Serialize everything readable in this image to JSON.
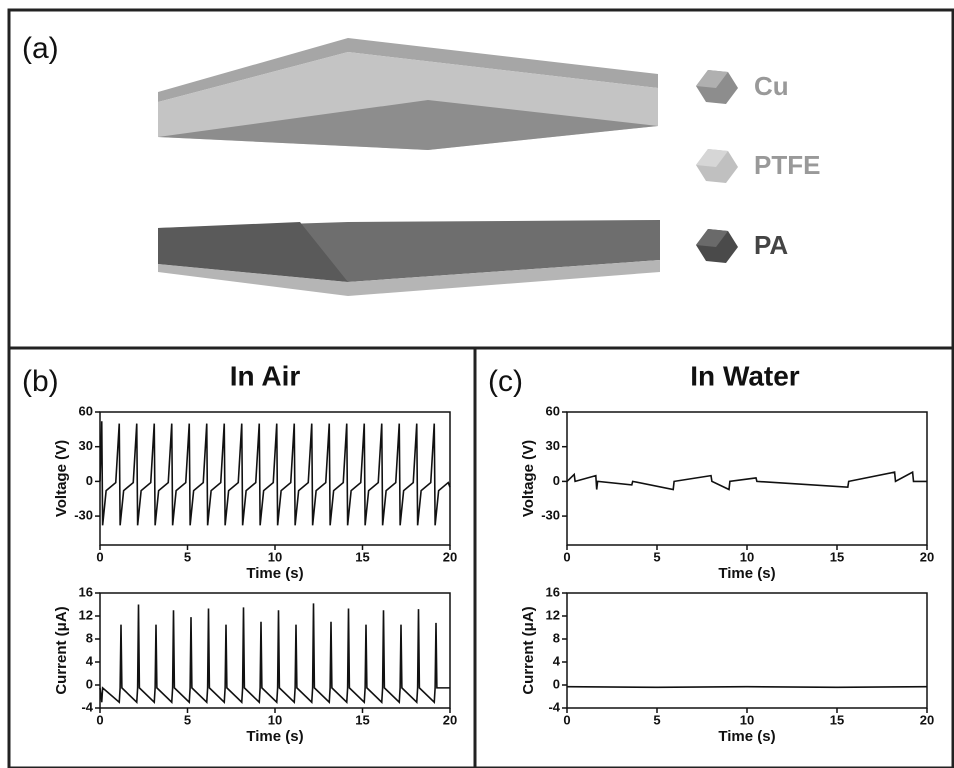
{
  "panel_labels": [
    "(a)",
    "(b)",
    "(c)"
  ],
  "legend": [
    "Cu",
    "PTFE",
    "PA"
  ],
  "panel_titles": [
    "In Air",
    "In Water"
  ],
  "chart_data": [
    {
      "type": "line",
      "x_label": "Time (s)",
      "y_label": "Voltage (V)",
      "xlim": [
        0,
        20
      ],
      "xticks": [
        0,
        5,
        10,
        15,
        20
      ],
      "ylim": [
        -55,
        60
      ],
      "yticks": [
        -30,
        0,
        30,
        60
      ],
      "series": [
        {
          "color": "#111111",
          "x": [
            0,
            0.1,
            0.15,
            0.35,
            0.9,
            1.1,
            1.15,
            1.35,
            1.9,
            2.1,
            2.15,
            2.35,
            2.9,
            3.1,
            3.15,
            3.35,
            3.9,
            4.1,
            4.15,
            4.35,
            4.9,
            5.1,
            5.15,
            5.35,
            5.9,
            6.1,
            6.15,
            6.35,
            6.9,
            7.1,
            7.15,
            7.35,
            7.9,
            8.1,
            8.15,
            8.35,
            8.9,
            9.1,
            9.15,
            9.35,
            9.9,
            10.1,
            10.15,
            10.35,
            10.9,
            11.1,
            11.15,
            11.35,
            11.9,
            12.1,
            12.15,
            12.35,
            12.9,
            13.1,
            13.15,
            13.35,
            13.9,
            14.1,
            14.15,
            14.35,
            14.9,
            15.1,
            15.15,
            15.35,
            15.9,
            16.1,
            16.15,
            16.35,
            16.9,
            17.1,
            17.15,
            17.35,
            17.9,
            18.1,
            18.15,
            18.35,
            18.9,
            19.1,
            19.15,
            19.35,
            19.9,
            20
          ],
          "values": [
            0,
            52,
            -38,
            -8,
            -1,
            50,
            -38,
            -8,
            -1,
            50,
            -38,
            -8,
            -1,
            50,
            -38,
            -8,
            -1,
            50,
            -38,
            -8,
            -1,
            50,
            -38,
            -8,
            -1,
            50,
            -38,
            -8,
            -1,
            50,
            -38,
            -8,
            -1,
            50,
            -38,
            -8,
            -1,
            50,
            -38,
            -8,
            -1,
            50,
            -38,
            -8,
            -1,
            50,
            -38,
            -8,
            -1,
            50,
            -38,
            -8,
            -1,
            50,
            -38,
            -8,
            -1,
            50,
            -38,
            -8,
            -1,
            50,
            -38,
            -8,
            -1,
            50,
            -38,
            -8,
            -1,
            50,
            -38,
            -8,
            -1,
            50,
            -38,
            -8,
            -1,
            50,
            -38,
            -8,
            -1,
            -5
          ]
        }
      ]
    },
    {
      "type": "line",
      "x_label": "Time (s)",
      "y_label": "Current (μA)",
      "xlim": [
        0,
        20
      ],
      "xticks": [
        0,
        5,
        10,
        15,
        20
      ],
      "ylim": [
        -4,
        16
      ],
      "yticks": [
        -4,
        0,
        4,
        8,
        12,
        16
      ],
      "series": [
        {
          "color": "#111111",
          "x": [
            0,
            0.1,
            0.15,
            1.1,
            1.15,
            1.2,
            1.25,
            2.1,
            2.15,
            2.2,
            2.25,
            3.1,
            3.15,
            3.2,
            3.25,
            4.1,
            4.15,
            4.2,
            4.25,
            5.1,
            5.15,
            5.2,
            5.25,
            6.1,
            6.15,
            6.2,
            6.25,
            7.1,
            7.15,
            7.2,
            7.25,
            8.1,
            8.15,
            8.2,
            8.25,
            9.1,
            9.15,
            9.2,
            9.25,
            10.1,
            10.15,
            10.2,
            10.25,
            11.1,
            11.15,
            11.2,
            11.25,
            12.1,
            12.15,
            12.2,
            12.25,
            13.1,
            13.15,
            13.2,
            13.25,
            14.1,
            14.15,
            14.2,
            14.25,
            15.1,
            15.15,
            15.2,
            15.25,
            16.1,
            16.15,
            16.2,
            16.25,
            17.1,
            17.15,
            17.2,
            17.25,
            18.1,
            18.15,
            18.2,
            18.25,
            19.1,
            19.15,
            19.2,
            19.25,
            20
          ],
          "values": [
            -0.5,
            -3,
            -0.5,
            -3,
            -0.5,
            10.5,
            -0.5,
            -3,
            -0.5,
            14,
            -0.5,
            -3,
            -0.5,
            10.5,
            -0.5,
            -3,
            -0.5,
            13,
            -0.5,
            -3,
            -0.5,
            11.8,
            -0.5,
            -3,
            -0.5,
            13.3,
            -0.5,
            -3,
            -0.5,
            10.5,
            -0.5,
            -3,
            -0.5,
            13.5,
            -0.5,
            -3,
            -0.5,
            11,
            -0.5,
            -3,
            -0.5,
            13,
            -0.5,
            -3,
            -0.5,
            10.5,
            -0.5,
            -3,
            -0.5,
            14.2,
            -0.5,
            -3,
            -0.5,
            11,
            -0.5,
            -3,
            -0.5,
            13.3,
            -0.5,
            -3,
            -0.5,
            10.5,
            -0.5,
            -3,
            -0.5,
            13,
            -0.5,
            -3,
            -0.5,
            10.5,
            -0.5,
            -3,
            -0.5,
            13.2,
            -0.5,
            -3,
            -0.5,
            10.8,
            -0.5,
            -0.5
          ]
        }
      ]
    },
    {
      "type": "line",
      "x_label": "Time (s)",
      "y_label": "Voltage (V)",
      "xlim": [
        0,
        20
      ],
      "xticks": [
        0,
        5,
        10,
        15,
        20
      ],
      "ylim": [
        -55,
        60
      ],
      "yticks": [
        -30,
        0,
        30,
        60
      ],
      "series": [
        {
          "color": "#111111",
          "x": [
            0,
            0.4,
            0.45,
            1.6,
            1.65,
            1.7,
            3.6,
            3.65,
            5.9,
            5.95,
            8,
            8.05,
            9,
            9.05,
            10.5,
            10.55,
            15.6,
            15.65,
            18.2,
            18.25,
            19.2,
            19.25,
            20
          ],
          "values": [
            0,
            6,
            0,
            5,
            -7,
            0,
            -3,
            0,
            -7,
            0,
            5,
            0,
            -7,
            0,
            3,
            0,
            -5,
            0,
            8,
            0,
            8,
            0,
            0
          ]
        }
      ]
    },
    {
      "type": "line",
      "x_label": "Time (s)",
      "y_label": "Current (μA)",
      "xlim": [
        0,
        20
      ],
      "xticks": [
        0,
        5,
        10,
        15,
        20
      ],
      "ylim": [
        -4,
        16
      ],
      "yticks": [
        -4,
        0,
        4,
        8,
        12,
        16
      ],
      "series": [
        {
          "color": "#111111",
          "x": [
            0,
            5,
            10,
            15,
            20
          ],
          "values": [
            -0.3,
            -0.4,
            -0.3,
            -0.4,
            -0.3
          ]
        }
      ]
    }
  ]
}
